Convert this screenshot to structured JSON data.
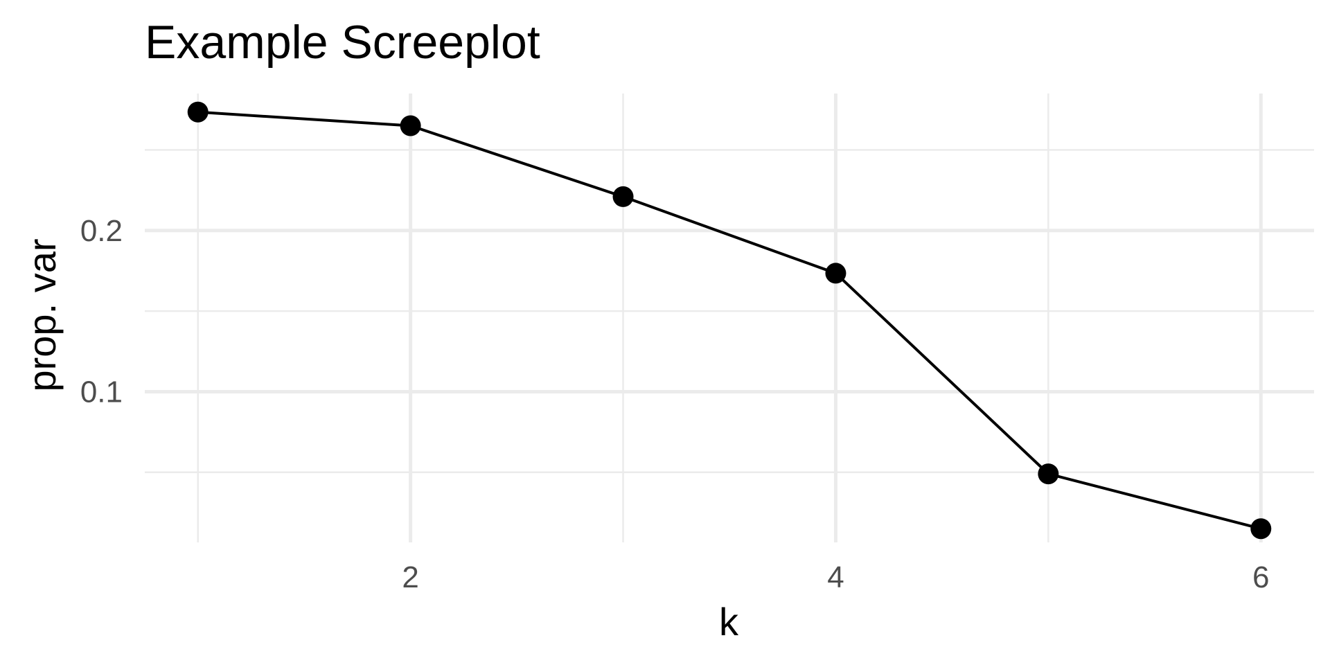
{
  "chart_data": {
    "type": "line",
    "title": "Example Screeplot",
    "xlabel": "k",
    "ylabel": "prop. var",
    "x": [
      1,
      2,
      3,
      4,
      5,
      6
    ],
    "series": [
      {
        "values": [
          0.2735,
          0.265,
          0.221,
          0.1735,
          0.049,
          0.015
        ]
      }
    ],
    "xlim": [
      0.75,
      6.25
    ],
    "ylim": [
      0.0065,
      0.285
    ],
    "x_ticks": [
      2,
      4,
      6
    ],
    "x_tick_labels": [
      "2",
      "4",
      "6"
    ],
    "y_ticks": [
      0.1,
      0.2
    ],
    "y_tick_labels": [
      "0.1",
      "0.2"
    ],
    "x_minor_ticks": [
      1,
      3,
      5
    ],
    "y_minor_ticks": [
      0.05,
      0.15,
      0.25
    ],
    "grid": true,
    "legend": "none",
    "markers": "filled-circle",
    "colors": {
      "line": "#000000",
      "point": "#000000",
      "grid": "#ebebeb",
      "tick_label": "#4d4d4d",
      "background": "#ffffff"
    }
  }
}
